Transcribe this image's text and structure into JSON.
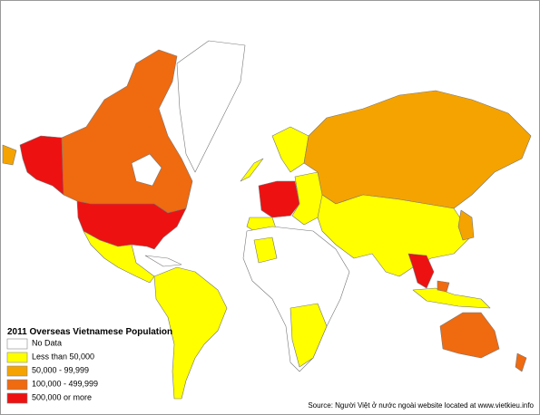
{
  "map": {
    "title": "2011 Overseas Vietnamese Population",
    "legend": [
      {
        "label": "No Data",
        "color": "#ffffff"
      },
      {
        "label": "Less than 50,000",
        "color": "#ffff00"
      },
      {
        "label": "50,000 - 99,999",
        "color": "#f5a300"
      },
      {
        "label": "100,000 - 499,999",
        "color": "#f06a10"
      },
      {
        "label": "500,000 or more",
        "color": "#ee1111"
      }
    ],
    "source": "Source: Người Việt ở nước ngoài website located at www.vietkieu.info"
  }
}
